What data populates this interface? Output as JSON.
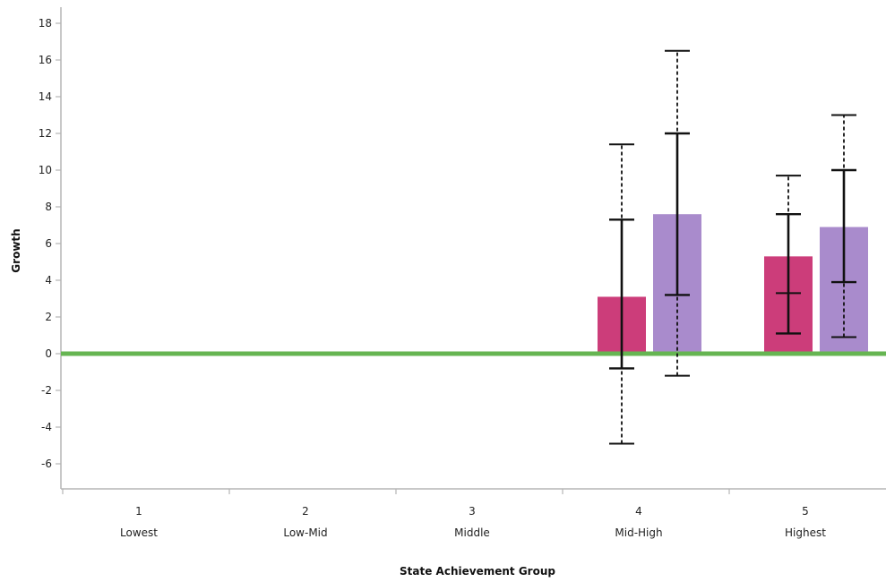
{
  "chart_data": {
    "type": "bar",
    "title": "",
    "xlabel": "State Achievement Group",
    "ylabel": "Growth",
    "ylim": [
      -7,
      19
    ],
    "yticks": [
      18,
      16,
      14,
      12,
      10,
      8,
      6,
      4,
      2,
      0,
      -2,
      -4,
      -6
    ],
    "reference_line": {
      "value": 0,
      "color": "#66b552"
    },
    "grid": false,
    "legend": "none",
    "categories": [
      {
        "number": "1",
        "label": "Lowest"
      },
      {
        "number": "2",
        "label": "Low-Mid"
      },
      {
        "number": "3",
        "label": "Middle"
      },
      {
        "number": "4",
        "label": "Mid-High"
      },
      {
        "number": "5",
        "label": "Highest"
      }
    ],
    "series": [
      {
        "color": "#cc3d7a",
        "values": [
          null,
          null,
          null,
          3.1,
          5.3
        ],
        "ci_inner": [
          null,
          null,
          null,
          [
            -0.8,
            7.3
          ],
          [
            1.1,
            7.6
          ]
        ],
        "ci_outer": [
          null,
          null,
          null,
          [
            -4.9,
            11.4
          ],
          [
            3.3,
            9.7
          ]
        ]
      },
      {
        "color": "#a98bcc",
        "values": [
          null,
          null,
          null,
          7.6,
          6.9
        ],
        "ci_inner": [
          null,
          null,
          null,
          [
            3.2,
            12.0
          ],
          [
            3.9,
            10.0
          ]
        ],
        "ci_outer": [
          null,
          null,
          null,
          [
            -1.2,
            16.5
          ],
          [
            0.9,
            13.0
          ]
        ]
      }
    ]
  }
}
